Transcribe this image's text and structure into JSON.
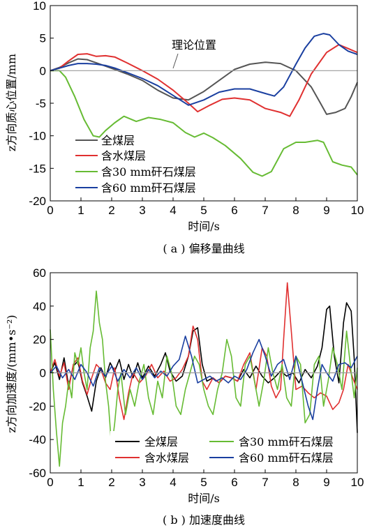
{
  "chart_data": [
    {
      "type": "line",
      "caption": "( a ) 偏移量曲线",
      "xlabel": "时间/s",
      "ylabel": "z方向质心位置/mm",
      "xlim": [
        0,
        10
      ],
      "ylim": [
        -20,
        10
      ],
      "xticks": [
        0,
        1,
        2,
        3,
        4,
        5,
        6,
        7,
        8,
        9,
        10
      ],
      "yticks": [
        -20,
        -15,
        -10,
        -5,
        0,
        5,
        10
      ],
      "reference_line": {
        "y": 0,
        "label": "理论位置"
      },
      "legend_position": "bottom-left",
      "series": [
        {
          "name": "全煤层",
          "color": "#555555",
          "x": [
            0,
            0.3,
            0.6,
            0.9,
            1.2,
            1.5,
            1.8,
            2.1,
            2.5,
            3,
            3.5,
            4,
            4.5,
            5,
            5.5,
            6,
            6.5,
            7,
            7.5,
            8,
            8.5,
            8.8,
            9,
            9.3,
            9.6,
            9.8,
            10
          ],
          "y": [
            0,
            0.5,
            1.2,
            1.8,
            1.7,
            1.2,
            0.7,
            0.2,
            -0.5,
            -1.5,
            -3,
            -4.2,
            -4.5,
            -3.2,
            -1.5,
            0.2,
            1,
            1.3,
            1.1,
            0,
            -2.5,
            -5,
            -6.7,
            -6.4,
            -5.8,
            -4,
            -1.8
          ]
        },
        {
          "name": "含水煤层",
          "color": "#e03030",
          "x": [
            0,
            0.3,
            0.6,
            0.9,
            1.2,
            1.5,
            1.8,
            2.1,
            2.5,
            3,
            3.5,
            4,
            4.5,
            4.8,
            5.2,
            5.6,
            6,
            6.5,
            7,
            7.5,
            7.8,
            8.1,
            8.5,
            9,
            9.4,
            9.7,
            10
          ],
          "y": [
            0,
            0.4,
            1.5,
            2.5,
            2.6,
            2.2,
            2.3,
            2.1,
            1.2,
            0,
            -1.3,
            -3,
            -5,
            -6.3,
            -5.3,
            -4.4,
            -4.2,
            -4.5,
            -5.8,
            -6.4,
            -7,
            -4.5,
            -0.5,
            2.8,
            4,
            3.4,
            2.8
          ]
        },
        {
          "name": "含30 mm矸石煤层",
          "color": "#66bb33",
          "x": [
            0,
            0.3,
            0.5,
            0.8,
            1.1,
            1.4,
            1.6,
            1.8,
            2.1,
            2.4,
            2.8,
            3.2,
            3.6,
            4,
            4.4,
            4.7,
            5,
            5.3,
            5.7,
            6.2,
            6.6,
            6.9,
            7.2,
            7.6,
            8,
            8.3,
            8.7,
            8.9,
            9.2,
            9.5,
            9.8,
            10
          ],
          "y": [
            0,
            0,
            -1,
            -4,
            -7.5,
            -10,
            -10.2,
            -9.2,
            -8,
            -7,
            -7.8,
            -7.2,
            -7.5,
            -8,
            -9.5,
            -10.2,
            -9.6,
            -10.3,
            -11.5,
            -13.5,
            -15.6,
            -16.2,
            -15.5,
            -12,
            -11,
            -11,
            -10.7,
            -11,
            -14,
            -14.5,
            -14.8,
            -16
          ]
        },
        {
          "name": "含60 mm矸石煤层",
          "color": "#1a3fa0",
          "x": [
            0,
            0.3,
            0.6,
            0.9,
            1.2,
            1.5,
            1.8,
            2.1,
            2.5,
            3,
            3.5,
            4,
            4.5,
            5,
            5.5,
            6,
            6.5,
            7,
            7.3,
            7.6,
            8,
            8.3,
            8.6,
            8.9,
            9.1,
            9.4,
            9.7,
            10
          ],
          "y": [
            0,
            0.4,
            0.8,
            1.1,
            1.1,
            1.0,
            0.8,
            0.4,
            -0.3,
            -1.2,
            -2.3,
            -3.8,
            -5.3,
            -4.5,
            -3.3,
            -2.8,
            -2.8,
            -3.5,
            -3.9,
            -2.5,
            1,
            3.5,
            5.3,
            5.7,
            5.5,
            4,
            3,
            2.5
          ]
        }
      ]
    },
    {
      "type": "line",
      "caption": "( b ) 加速度曲线",
      "xlabel": "时间/s",
      "ylabel": "z方向加速度/(mm•s⁻²)",
      "xlim": [
        0,
        10
      ],
      "ylim": [
        -60,
        60
      ],
      "xticks": [
        0,
        1,
        2,
        3,
        4,
        5,
        6,
        7,
        8,
        9,
        10
      ],
      "yticks": [
        -60,
        -40,
        -20,
        0,
        20,
        40,
        60
      ],
      "reference_line": {
        "y": 0
      },
      "legend_position": "bottom",
      "series": [
        {
          "name": "全煤层",
          "color": "#000000",
          "x": [
            0,
            0.15,
            0.3,
            0.45,
            0.6,
            0.75,
            0.9,
            1.05,
            1.2,
            1.35,
            1.5,
            1.65,
            1.8,
            1.95,
            2.1,
            2.25,
            2.4,
            2.55,
            2.7,
            2.85,
            3,
            3.2,
            3.4,
            3.6,
            3.75,
            3.9,
            4.1,
            4.3,
            4.5,
            4.65,
            4.8,
            4.95,
            5.1,
            5.3,
            5.5,
            5.7,
            5.9,
            6.1,
            6.3,
            6.5,
            6.7,
            6.9,
            7.1,
            7.3,
            7.5,
            7.7,
            7.9,
            8.1,
            8.3,
            8.5,
            8.7,
            8.85,
            9,
            9.1,
            9.25,
            9.4,
            9.55,
            9.65,
            9.8,
            9.9,
            10
          ],
          "y": [
            0,
            6,
            -4,
            9,
            -8,
            4,
            7,
            -6,
            -14,
            -23,
            -5,
            3,
            -3,
            6,
            1,
            8,
            -4,
            5,
            -3,
            6,
            -3,
            4,
            -2,
            5,
            12,
            1,
            -5,
            -2,
            10,
            25,
            27,
            5,
            -5,
            -3,
            -6,
            -2,
            -3,
            -5,
            2,
            -3,
            4,
            -2,
            -6,
            -3,
            1,
            -2,
            0,
            -6,
            2,
            -3,
            4,
            15,
            38,
            40,
            10,
            -6,
            30,
            42,
            37,
            8,
            -36
          ]
        },
        {
          "name": "含水煤层",
          "color": "#e03030",
          "x": [
            0,
            0.15,
            0.3,
            0.45,
            0.6,
            0.75,
            0.9,
            1.05,
            1.2,
            1.35,
            1.5,
            1.65,
            1.8,
            1.95,
            2.1,
            2.25,
            2.4,
            2.55,
            2.7,
            2.9,
            3.1,
            3.3,
            3.5,
            3.7,
            3.9,
            4.1,
            4.3,
            4.5,
            4.65,
            4.8,
            4.95,
            5.1,
            5.3,
            5.5,
            5.7,
            5.9,
            6.1,
            6.3,
            6.5,
            6.7,
            6.9,
            7.05,
            7.2,
            7.35,
            7.5,
            7.6,
            7.72,
            7.85,
            8,
            8.2,
            8.4,
            8.6,
            8.8,
            9,
            9.2,
            9.4,
            9.55,
            9.7,
            9.85,
            10
          ],
          "y": [
            0,
            8,
            -2,
            6,
            -10,
            5,
            9,
            -5,
            -13,
            -3,
            5,
            2,
            -6,
            -10,
            3,
            -15,
            -28,
            -12,
            0,
            -6,
            -2,
            5,
            -3,
            1,
            -5,
            -3,
            2,
            10,
            28,
            20,
            -5,
            -10,
            -3,
            -6,
            -2,
            -3,
            -5,
            5,
            12,
            -10,
            15,
            10,
            -8,
            -15,
            -10,
            20,
            54,
            25,
            -10,
            -8,
            -12,
            -15,
            -12,
            -14,
            -22,
            -18,
            -10,
            5,
            -3,
            -10
          ]
        },
        {
          "name": "含30 mm矸石煤层",
          "color": "#66bb33",
          "x": [
            0,
            0.1,
            0.2,
            0.3,
            0.4,
            0.5,
            0.6,
            0.7,
            0.8,
            0.9,
            1.0,
            1.1,
            1.2,
            1.3,
            1.4,
            1.5,
            1.6,
            1.7,
            1.8,
            1.9,
            2.0,
            2.1,
            2.2,
            2.3,
            2.45,
            2.6,
            2.75,
            2.9,
            3.05,
            3.2,
            3.35,
            3.5,
            3.65,
            3.8,
            3.95,
            4.1,
            4.25,
            4.4,
            4.55,
            4.7,
            4.85,
            5.0,
            5.15,
            5.3,
            5.45,
            5.6,
            5.75,
            5.9,
            6.05,
            6.2,
            6.35,
            6.5,
            6.65,
            6.8,
            6.95,
            7.1,
            7.25,
            7.4,
            7.55,
            7.7,
            7.85,
            8.0,
            8.15,
            8.3,
            8.45,
            8.6,
            8.75,
            8.9,
            9.05,
            9.2,
            9.35,
            9.5,
            9.65,
            9.8,
            9.9,
            10
          ],
          "y": [
            26,
            -10,
            -35,
            -56,
            -30,
            -20,
            -5,
            -15,
            12,
            5,
            15,
            0,
            -10,
            15,
            25,
            49,
            30,
            20,
            -5,
            -20,
            -45,
            -30,
            -10,
            0,
            -25,
            -10,
            -20,
            -5,
            5,
            -15,
            -25,
            -5,
            -15,
            10,
            0,
            -20,
            -25,
            -10,
            0,
            10,
            5,
            -10,
            -20,
            -25,
            -10,
            0,
            20,
            10,
            -15,
            -20,
            5,
            10,
            -5,
            -20,
            -5,
            15,
            0,
            -10,
            5,
            -15,
            -20,
            10,
            5,
            -30,
            -25,
            5,
            10,
            -20,
            -5,
            15,
            5,
            -10,
            25,
            0,
            -15,
            3
          ]
        },
        {
          "name": "含60 mm矸石煤层",
          "color": "#1a3fa0",
          "x": [
            0,
            0.2,
            0.4,
            0.6,
            0.8,
            1.0,
            1.2,
            1.4,
            1.6,
            1.8,
            2.0,
            2.2,
            2.4,
            2.6,
            2.8,
            3.0,
            3.2,
            3.4,
            3.6,
            3.8,
            4.0,
            4.2,
            4.4,
            4.6,
            4.8,
            5.0,
            5.2,
            5.4,
            5.6,
            5.8,
            6.0,
            6.2,
            6.4,
            6.6,
            6.8,
            7.0,
            7.2,
            7.4,
            7.6,
            7.8,
            8.0,
            8.2,
            8.4,
            8.55,
            8.7,
            8.85,
            9.0,
            9.2,
            9.4,
            9.6,
            9.8,
            10
          ],
          "y": [
            0,
            4,
            -3,
            2,
            -4,
            5,
            0,
            -8,
            3,
            -2,
            4,
            -5,
            2,
            -3,
            3,
            -4,
            2,
            -3,
            1,
            -2,
            4,
            8,
            22,
            10,
            -6,
            -4,
            -2,
            -5,
            -3,
            -6,
            -2,
            -4,
            2,
            12,
            20,
            10,
            -2,
            5,
            8,
            -4,
            10,
            -5,
            -20,
            -28,
            -10,
            5,
            0,
            -5,
            5,
            6,
            3,
            10
          ]
        }
      ]
    }
  ]
}
